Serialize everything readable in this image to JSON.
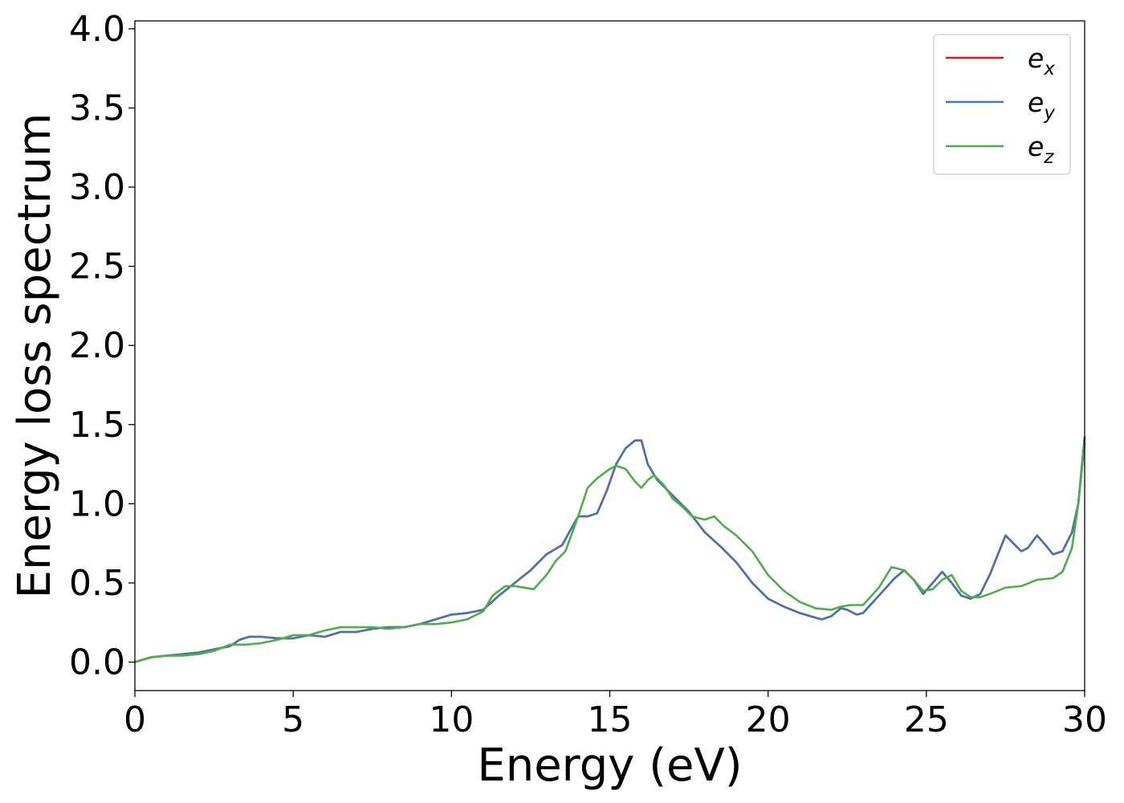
{
  "chart_data": {
    "type": "line",
    "title": "",
    "xlabel": "Energy (eV)",
    "ylabel": "Energy loss spectrum",
    "xlim": [
      0,
      30
    ],
    "ylim": [
      -0.18,
      4.05
    ],
    "xticks": [
      0,
      5,
      10,
      15,
      20,
      25,
      30
    ],
    "xtick_labels": [
      "0",
      "5",
      "10",
      "15",
      "20",
      "25",
      "30"
    ],
    "yticks": [
      0.0,
      0.5,
      1.0,
      1.5,
      2.0,
      2.5,
      3.0,
      3.5,
      4.0
    ],
    "ytick_labels": [
      "0.0",
      "0.5",
      "1.0",
      "1.5",
      "2.0",
      "2.5",
      "3.0",
      "3.5",
      "4.0"
    ],
    "grid": false,
    "legend_position": "top-right",
    "series": [
      {
        "name": "e_x",
        "legend_base": "e",
        "legend_sub": "x",
        "color": "#e41a1c",
        "x": [
          0,
          0.5,
          1,
          1.5,
          2,
          2.5,
          3,
          3.3,
          3.6,
          4,
          4.5,
          5,
          5.5,
          6,
          6.5,
          7,
          7.5,
          8,
          8.5,
          9,
          9.5,
          10,
          10.5,
          11,
          11.5,
          12,
          12.5,
          13,
          13.5,
          13.8,
          14,
          14.3,
          14.6,
          14.9,
          15.2,
          15.5,
          15.8,
          16,
          16.2,
          16.5,
          17,
          17.5,
          18,
          18.5,
          19,
          19.5,
          20,
          20.5,
          21,
          21.5,
          21.7,
          22,
          22.3,
          22.5,
          22.8,
          23,
          23.5,
          24,
          24.3,
          24.6,
          24.9,
          25.2,
          25.5,
          25.8,
          26.1,
          26.4,
          26.7,
          27,
          27.2,
          27.5,
          27.8,
          28,
          28.2,
          28.5,
          28.8,
          29,
          29.3,
          29.6,
          29.8,
          30
        ],
        "y": [
          0.0,
          0.03,
          0.04,
          0.05,
          0.06,
          0.08,
          0.1,
          0.14,
          0.16,
          0.16,
          0.15,
          0.15,
          0.17,
          0.16,
          0.19,
          0.19,
          0.21,
          0.22,
          0.22,
          0.24,
          0.27,
          0.3,
          0.31,
          0.33,
          0.42,
          0.5,
          0.58,
          0.68,
          0.74,
          0.85,
          0.92,
          0.92,
          0.94,
          1.08,
          1.25,
          1.35,
          1.4,
          1.4,
          1.25,
          1.15,
          1.05,
          0.95,
          0.82,
          0.73,
          0.63,
          0.5,
          0.4,
          0.35,
          0.31,
          0.28,
          0.27,
          0.29,
          0.34,
          0.33,
          0.3,
          0.31,
          0.42,
          0.53,
          0.58,
          0.52,
          0.43,
          0.5,
          0.57,
          0.5,
          0.42,
          0.4,
          0.43,
          0.55,
          0.65,
          0.8,
          0.74,
          0.7,
          0.72,
          0.8,
          0.73,
          0.68,
          0.7,
          0.82,
          1.0,
          1.42
        ]
      },
      {
        "name": "e_y",
        "legend_base": "e",
        "legend_sub": "y",
        "color": "#4a74ab",
        "x": [
          0,
          0.5,
          1,
          1.5,
          2,
          2.5,
          3,
          3.3,
          3.6,
          4,
          4.5,
          5,
          5.5,
          6,
          6.5,
          7,
          7.5,
          8,
          8.5,
          9,
          9.5,
          10,
          10.5,
          11,
          11.5,
          12,
          12.5,
          13,
          13.5,
          13.8,
          14,
          14.3,
          14.6,
          14.9,
          15.2,
          15.5,
          15.8,
          16,
          16.2,
          16.5,
          17,
          17.5,
          18,
          18.5,
          19,
          19.5,
          20,
          20.5,
          21,
          21.5,
          21.7,
          22,
          22.3,
          22.5,
          22.8,
          23,
          23.5,
          24,
          24.3,
          24.6,
          24.9,
          25.2,
          25.5,
          25.8,
          26.1,
          26.4,
          26.7,
          27,
          27.2,
          27.5,
          27.8,
          28,
          28.2,
          28.5,
          28.8,
          29,
          29.3,
          29.6,
          29.8,
          30
        ],
        "y": [
          0.0,
          0.03,
          0.04,
          0.05,
          0.06,
          0.08,
          0.1,
          0.14,
          0.16,
          0.16,
          0.15,
          0.15,
          0.17,
          0.16,
          0.19,
          0.19,
          0.21,
          0.22,
          0.22,
          0.24,
          0.27,
          0.3,
          0.31,
          0.33,
          0.42,
          0.5,
          0.58,
          0.68,
          0.74,
          0.85,
          0.92,
          0.92,
          0.94,
          1.08,
          1.25,
          1.35,
          1.4,
          1.4,
          1.25,
          1.15,
          1.05,
          0.95,
          0.82,
          0.73,
          0.63,
          0.5,
          0.4,
          0.35,
          0.31,
          0.28,
          0.27,
          0.29,
          0.34,
          0.33,
          0.3,
          0.31,
          0.42,
          0.53,
          0.58,
          0.52,
          0.43,
          0.5,
          0.57,
          0.5,
          0.42,
          0.4,
          0.43,
          0.55,
          0.65,
          0.8,
          0.74,
          0.7,
          0.72,
          0.8,
          0.73,
          0.68,
          0.7,
          0.82,
          1.0,
          1.42
        ]
      },
      {
        "name": "e_z",
        "legend_base": "e",
        "legend_sub": "z",
        "color": "#4daf4a",
        "x": [
          0,
          0.5,
          1,
          1.5,
          2,
          2.5,
          3,
          3.5,
          4,
          4.5,
          5,
          5.5,
          6,
          6.5,
          7,
          7.5,
          8,
          8.5,
          9,
          9.5,
          10,
          10.5,
          11,
          11.3,
          11.7,
          12,
          12.3,
          12.6,
          13,
          13.3,
          13.6,
          14,
          14.3,
          14.6,
          15,
          15.2,
          15.5,
          15.8,
          16,
          16.2,
          16.4,
          16.7,
          17,
          17.3,
          17.6,
          18,
          18.3,
          18.6,
          19,
          19.5,
          20,
          20.5,
          21,
          21.5,
          22,
          22.3,
          22.6,
          23,
          23.5,
          23.9,
          24.3,
          24.6,
          24.9,
          25.2,
          25.5,
          25.8,
          26.1,
          26.4,
          26.7,
          27,
          27.5,
          28,
          28.5,
          29,
          29.3,
          29.6,
          29.8,
          30
        ],
        "y": [
          0.0,
          0.03,
          0.04,
          0.04,
          0.05,
          0.07,
          0.11,
          0.11,
          0.12,
          0.14,
          0.17,
          0.17,
          0.2,
          0.22,
          0.22,
          0.22,
          0.21,
          0.22,
          0.24,
          0.24,
          0.25,
          0.27,
          0.32,
          0.42,
          0.48,
          0.48,
          0.47,
          0.46,
          0.55,
          0.64,
          0.7,
          0.92,
          1.1,
          1.16,
          1.22,
          1.24,
          1.22,
          1.14,
          1.1,
          1.15,
          1.18,
          1.12,
          1.03,
          0.98,
          0.92,
          0.9,
          0.92,
          0.86,
          0.8,
          0.7,
          0.55,
          0.45,
          0.38,
          0.34,
          0.33,
          0.35,
          0.36,
          0.36,
          0.47,
          0.6,
          0.58,
          0.52,
          0.45,
          0.46,
          0.52,
          0.55,
          0.45,
          0.41,
          0.41,
          0.43,
          0.47,
          0.48,
          0.52,
          0.53,
          0.57,
          0.72,
          1.0,
          1.38
        ]
      }
    ]
  }
}
